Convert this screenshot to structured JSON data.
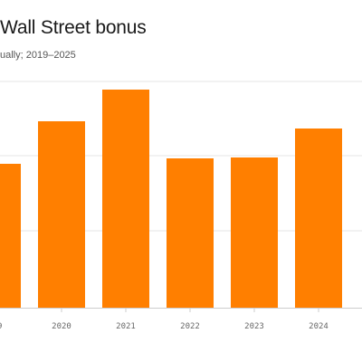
{
  "title": "Wall Street bonus",
  "subtitle": "ually; 2019–2025",
  "colors": {
    "bar": "#ff7f00",
    "grid": "#e6e6e6",
    "axis": "#cccccc"
  },
  "chart_data": {
    "type": "bar",
    "categories": [
      "19",
      "2020",
      "2021",
      "2022",
      "2023",
      "2024"
    ],
    "values": [
      159,
      206,
      241,
      165,
      166,
      198
    ],
    "ylim": [
      0,
      250
    ],
    "grid": true,
    "gridlines": [
      85,
      168,
      250
    ]
  }
}
